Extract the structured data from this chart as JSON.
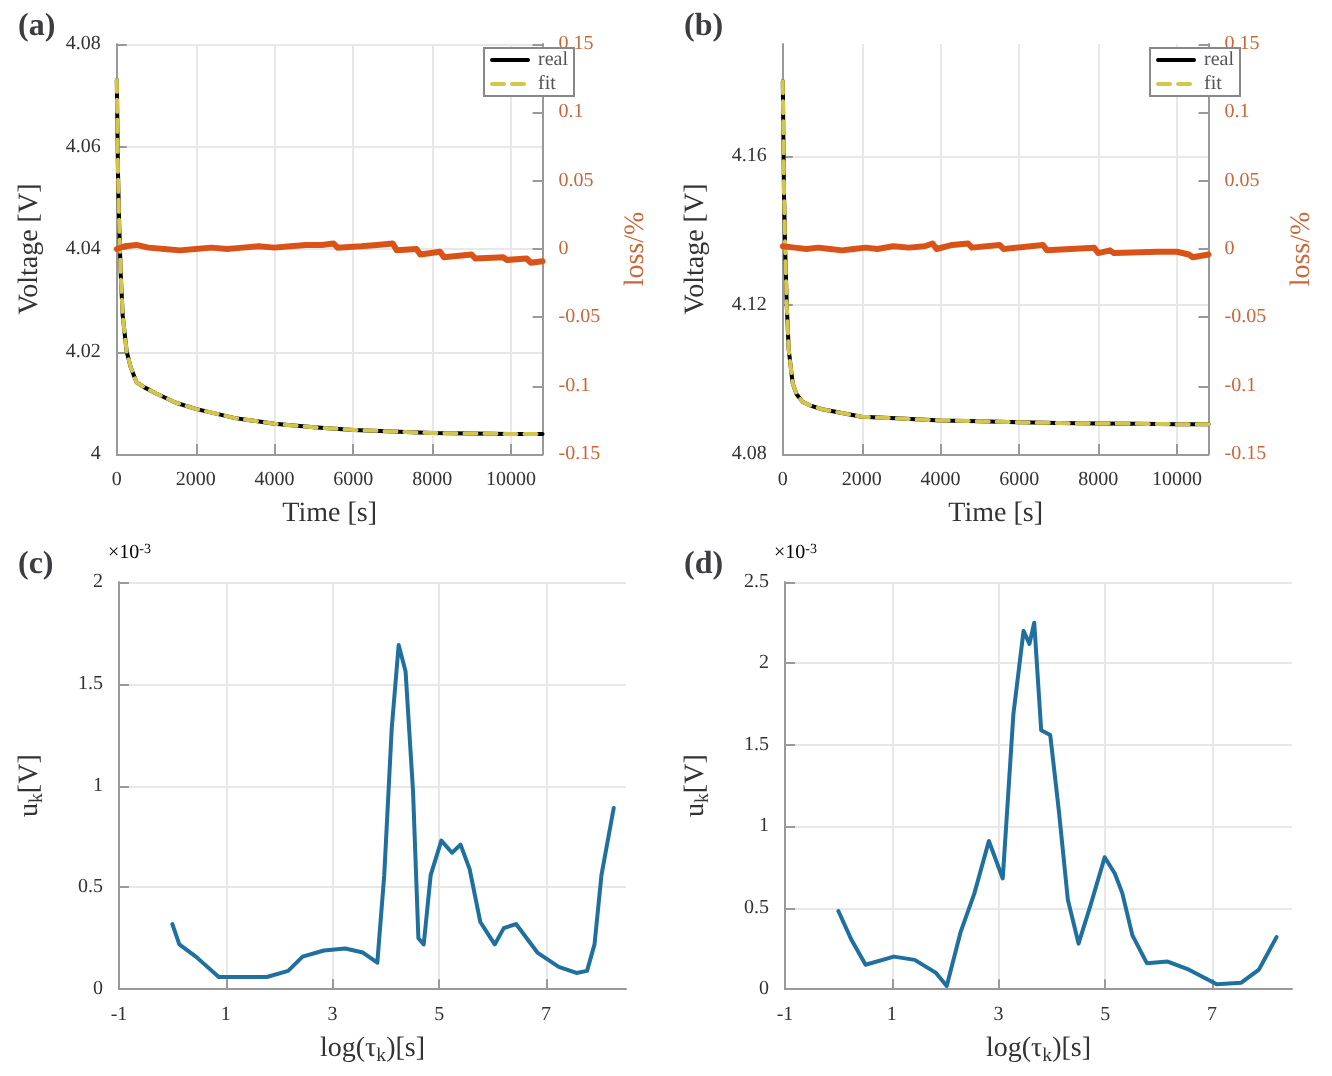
{
  "chart_data": [
    {
      "type": "line",
      "title": "(a)",
      "xlabel": "Time [s]",
      "ylabel": "Voltage [V]",
      "y2label": "loss/%",
      "xlim": [
        0,
        10800
      ],
      "xticks": [
        0,
        2000,
        4000,
        6000,
        8000,
        10000
      ],
      "ylim": [
        4,
        4.08
      ],
      "yticks": [
        4,
        4.02,
        4.04,
        4.06,
        4.08
      ],
      "y2lim": [
        -0.15,
        0.15
      ],
      "y2ticks": [
        -0.15,
        -0.1,
        -0.05,
        0,
        0.05,
        0.1,
        0.15
      ],
      "grid": true,
      "legend": "top right",
      "marker": "none",
      "series": [
        {
          "name": "real",
          "color": "#000000",
          "line_style": "solid",
          "x": [
            0,
            30,
            60,
            100,
            150,
            250,
            350,
            500,
            700,
            1000,
            1500,
            2000,
            3000,
            4000,
            5000,
            6000,
            7000,
            8000,
            9000,
            10000,
            10800
          ],
          "values": [
            4.073,
            4.055,
            4.045,
            4.035,
            4.027,
            4.02,
            4.017,
            4.014,
            4.013,
            4.0118,
            4.01,
            4.0088,
            4.007,
            4.0059,
            4.0052,
            4.0047,
            4.0044,
            4.0041,
            4.004,
            4.0039,
            4.0039
          ]
        },
        {
          "name": "fit",
          "color": "#d4c64a",
          "line_style": "dashed",
          "x": [
            0,
            30,
            60,
            100,
            150,
            250,
            350,
            500,
            700,
            1000,
            1500,
            2000,
            3000,
            4000,
            5000,
            6000,
            7000,
            8000,
            9000,
            10000,
            10800
          ],
          "values": [
            4.073,
            4.055,
            4.045,
            4.035,
            4.027,
            4.02,
            4.017,
            4.014,
            4.013,
            4.0118,
            4.01,
            4.0088,
            4.007,
            4.0059,
            4.0052,
            4.0047,
            4.0044,
            4.0041,
            4.004,
            4.0039,
            4.0039
          ]
        },
        {
          "color": "#d95319",
          "axis": "y2",
          "line_style": "solid",
          "x": [
            0,
            200,
            500,
            800,
            1200,
            1600,
            2000,
            2400,
            2800,
            3200,
            3600,
            4000,
            4400,
            4800,
            5200,
            5500,
            5600,
            6200,
            6600,
            7000,
            7100,
            7600,
            7700,
            8200,
            8300,
            9000,
            9100,
            9800,
            9900,
            10400,
            10500,
            10800
          ],
          "values": [
            0,
            0.002,
            0.003,
            0.001,
            0,
            -0.001,
            0,
            0.001,
            0,
            0.001,
            0.002,
            0.001,
            0.002,
            0.003,
            0.003,
            0.004,
            0.001,
            0.002,
            0.003,
            0.004,
            -0.001,
            0,
            -0.004,
            -0.002,
            -0.006,
            -0.004,
            -0.007,
            -0.006,
            -0.008,
            -0.007,
            -0.01,
            -0.009
          ]
        }
      ]
    },
    {
      "type": "line",
      "title": "(b)",
      "xlabel": "Time [s]",
      "ylabel": "Voltage [V]",
      "y2label": "loss/%",
      "xlim": [
        0,
        10800
      ],
      "xticks": [
        0,
        2000,
        4000,
        6000,
        8000,
        10000
      ],
      "ylim": [
        4.08,
        4.19
      ],
      "yticks": [
        4.08,
        4.12,
        4.16
      ],
      "y2lim": [
        -0.15,
        0.15
      ],
      "y2ticks": [
        -0.15,
        -0.1,
        -0.05,
        0,
        0.05,
        0.1,
        0.15
      ],
      "grid": true,
      "legend": "top right",
      "marker": "none",
      "series": [
        {
          "name": "real",
          "color": "#000000",
          "line_style": "solid",
          "x": [
            0,
            30,
            60,
            100,
            150,
            250,
            350,
            500,
            700,
            1000,
            1500,
            2000,
            3000,
            4000,
            5000,
            6000,
            7000,
            8000,
            9000,
            10000,
            10800
          ],
          "values": [
            4.18,
            4.15,
            4.135,
            4.12,
            4.108,
            4.099,
            4.096,
            4.094,
            4.093,
            4.092,
            4.091,
            4.09,
            4.0895,
            4.089,
            4.0888,
            4.0885,
            4.0883,
            4.0882,
            4.0881,
            4.088,
            4.088
          ]
        },
        {
          "name": "fit",
          "color": "#d4c64a",
          "line_style": "dashed",
          "x": [
            0,
            30,
            60,
            100,
            150,
            250,
            350,
            500,
            700,
            1000,
            1500,
            2000,
            3000,
            4000,
            5000,
            6000,
            7000,
            8000,
            9000,
            10000,
            10800
          ],
          "values": [
            4.18,
            4.15,
            4.135,
            4.12,
            4.108,
            4.099,
            4.096,
            4.094,
            4.093,
            4.092,
            4.091,
            4.09,
            4.0895,
            4.089,
            4.0888,
            4.0885,
            4.0883,
            4.0882,
            4.0881,
            4.088,
            4.088
          ]
        },
        {
          "color": "#d95319",
          "axis": "y2",
          "line_style": "solid",
          "x": [
            0,
            300,
            600,
            900,
            1200,
            1500,
            1800,
            2100,
            2400,
            2800,
            3200,
            3600,
            3800,
            3900,
            4300,
            4700,
            4800,
            5500,
            5600,
            6600,
            6700,
            7900,
            8000,
            8300,
            8400,
            9500,
            10000,
            10300,
            10400,
            10800
          ],
          "values": [
            0.002,
            0.001,
            0,
            0.001,
            0,
            -0.001,
            0,
            0.001,
            0,
            0.002,
            0.001,
            0.002,
            0.004,
            0,
            0.003,
            0.004,
            0.001,
            0.003,
            0,
            0.003,
            -0.001,
            0.001,
            -0.003,
            -0.001,
            -0.003,
            -0.002,
            -0.002,
            -0.004,
            -0.006,
            -0.004
          ]
        }
      ]
    },
    {
      "type": "line",
      "title": "(c)",
      "xlabel": "log(τ$_{k}$)[s]",
      "ylabel": "u$_{k}$[V]",
      "annotations": [
        "×10$^{-3}$"
      ],
      "xlim": [
        -1,
        8.5
      ],
      "xticks": [
        -1,
        1,
        3,
        5,
        7
      ],
      "ylim": [
        0,
        2
      ],
      "yticks": [
        0,
        0.5,
        1,
        1.5,
        2
      ],
      "grid": true,
      "marker": "none",
      "series": [
        {
          "color": "#1f6f9f",
          "line_style": "solid",
          "x": [
            0,
            0.13,
            0.44,
            0.87,
            1.77,
            2.17,
            2.44,
            2.84,
            3.24,
            3.57,
            3.84,
            3.97,
            4.11,
            4.24,
            4.37,
            4.51,
            4.61,
            4.71,
            4.84,
            5.04,
            5.24,
            5.4,
            5.57,
            5.77,
            6.04,
            6.21,
            6.44,
            6.64,
            6.84,
            7.24,
            7.57,
            7.77,
            7.91,
            8.04,
            8.27
          ],
          "values": [
            0.32,
            0.22,
            0.16,
            0.06,
            0.06,
            0.09,
            0.16,
            0.19,
            0.2,
            0.18,
            0.13,
            0.56,
            1.28,
            1.69,
            1.56,
            0.97,
            0.25,
            0.22,
            0.56,
            0.73,
            0.67,
            0.71,
            0.59,
            0.33,
            0.22,
            0.3,
            0.32,
            0.25,
            0.18,
            0.11,
            0.08,
            0.09,
            0.22,
            0.56,
            0.89
          ]
        }
      ]
    },
    {
      "type": "line",
      "title": "(d)",
      "xlabel": "log(τ$_{k}$)[s]",
      "ylabel": "u$_{k}$[V]",
      "annotations": [
        "×10$^{-3}$"
      ],
      "xlim": [
        -1,
        8.5
      ],
      "xticks": [
        -1,
        1,
        3,
        5,
        7
      ],
      "ylim": [
        0,
        2.5
      ],
      "yticks": [
        0,
        0.5,
        1,
        1.5,
        2,
        2.5
      ],
      "grid": true,
      "marker": "none",
      "series": [
        {
          "color": "#1f6f9f",
          "line_style": "solid",
          "x": [
            0,
            0.25,
            0.51,
            1.04,
            1.43,
            1.83,
            2.03,
            2.29,
            2.55,
            2.82,
            3.08,
            3.28,
            3.47,
            3.58,
            3.67,
            3.8,
            3.97,
            4.13,
            4.3,
            4.5,
            4.72,
            4.99,
            5.18,
            5.32,
            5.51,
            5.78,
            6.17,
            6.57,
            7.09,
            7.55,
            7.88,
            8.21
          ],
          "values": [
            0.48,
            0.3,
            0.15,
            0.2,
            0.18,
            0.1,
            0.02,
            0.35,
            0.59,
            0.91,
            0.68,
            1.69,
            2.2,
            2.12,
            2.25,
            1.59,
            1.56,
            1.1,
            0.55,
            0.28,
            0.51,
            0.81,
            0.71,
            0.59,
            0.33,
            0.16,
            0.17,
            0.12,
            0.03,
            0.04,
            0.12,
            0.32
          ]
        }
      ]
    }
  ]
}
